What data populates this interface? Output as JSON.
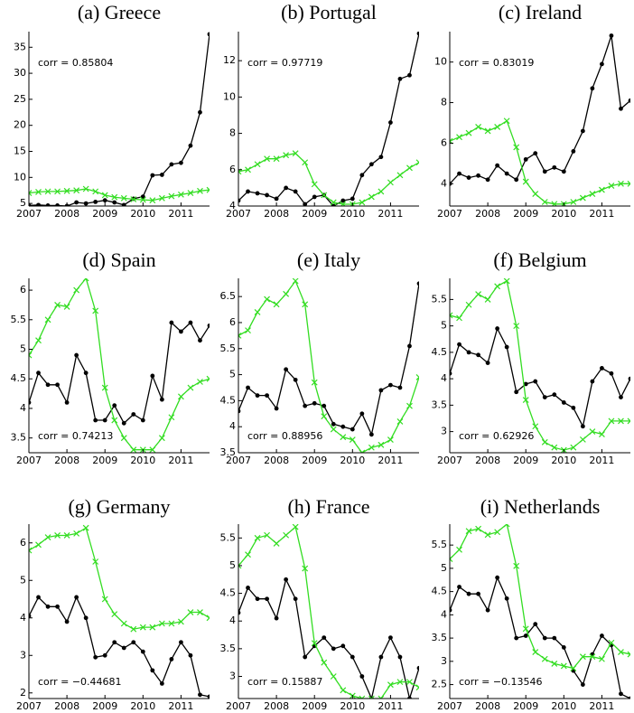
{
  "chart_data": [
    {
      "type": "line",
      "title": "(a) Greece",
      "annotation": "corr = 0.85804",
      "annotation_corner": "top-left",
      "x": [
        2007,
        2007.25,
        2007.5,
        2007.75,
        2008,
        2008.25,
        2008.5,
        2008.75,
        2009,
        2009.25,
        2009.5,
        2009.75,
        2010,
        2010.25,
        2010.5,
        2010.75,
        2011,
        2011.25,
        2011.5,
        2011.75
      ],
      "xlim": [
        2007,
        2011.75
      ],
      "xticks": [
        2007,
        2008,
        2009,
        2010,
        2011
      ],
      "ylim": [
        4.5,
        38
      ],
      "yticks": [
        5,
        10,
        15,
        20,
        25,
        30,
        35
      ],
      "series": [
        {
          "color": "#000000",
          "marker": "o",
          "values": [
            4.6,
            4.7,
            4.6,
            4.6,
            4.5,
            5.2,
            5.0,
            5.3,
            5.6,
            5.2,
            4.7,
            5.9,
            6.3,
            10.4,
            10.5,
            12.5,
            12.8,
            16.1,
            22.5,
            37.5
          ]
        },
        {
          "color": "#33dd22",
          "marker": "x",
          "values": [
            7.0,
            7.2,
            7.3,
            7.3,
            7.4,
            7.5,
            7.8,
            7.3,
            6.6,
            6.2,
            6.0,
            5.8,
            5.7,
            5.6,
            6.0,
            6.4,
            6.7,
            7.0,
            7.4,
            7.6
          ]
        }
      ]
    },
    {
      "type": "line",
      "title": "(b) Portugal",
      "annotation": "corr = 0.97719",
      "annotation_corner": "top-left",
      "x": [
        2007,
        2007.25,
        2007.5,
        2007.75,
        2008,
        2008.25,
        2008.5,
        2008.75,
        2009,
        2009.25,
        2009.5,
        2009.75,
        2010,
        2010.25,
        2010.5,
        2010.75,
        2011,
        2011.25,
        2011.5,
        2011.75
      ],
      "xlim": [
        2007,
        2011.75
      ],
      "xticks": [
        2007,
        2008,
        2009,
        2010,
        2011
      ],
      "ylim": [
        4,
        13.6
      ],
      "yticks": [
        4,
        6,
        8,
        10,
        12
      ],
      "series": [
        {
          "color": "#000000",
          "marker": "o",
          "values": [
            4.3,
            4.8,
            4.7,
            4.6,
            4.4,
            5.0,
            4.8,
            4.1,
            4.5,
            4.6,
            4.0,
            4.3,
            4.4,
            5.7,
            6.3,
            6.7,
            8.6,
            11.0,
            11.2,
            13.5
          ]
        },
        {
          "color": "#33dd22",
          "marker": "x",
          "values": [
            5.9,
            6.0,
            6.3,
            6.6,
            6.6,
            6.8,
            6.9,
            6.4,
            5.2,
            4.6,
            4.2,
            4.1,
            4.1,
            4.2,
            4.5,
            4.8,
            5.3,
            5.7,
            6.1,
            6.4
          ]
        }
      ]
    },
    {
      "type": "line",
      "title": "(c) Ireland",
      "annotation": "corr = 0.83019",
      "annotation_corner": "top-left",
      "x": [
        2007,
        2007.25,
        2007.5,
        2007.75,
        2008,
        2008.25,
        2008.5,
        2008.75,
        2009,
        2009.25,
        2009.5,
        2009.75,
        2010,
        2010.25,
        2010.5,
        2010.75,
        2011,
        2011.25,
        2011.5,
        2011.75
      ],
      "xlim": [
        2007,
        2011.75
      ],
      "xticks": [
        2007,
        2008,
        2009,
        2010,
        2011
      ],
      "ylim": [
        2.9,
        11.5
      ],
      "yticks": [
        4,
        6,
        8,
        10
      ],
      "series": [
        {
          "color": "#000000",
          "marker": "o",
          "values": [
            4.0,
            4.5,
            4.3,
            4.4,
            4.2,
            4.9,
            4.5,
            4.2,
            5.2,
            5.5,
            4.6,
            4.8,
            4.6,
            5.6,
            6.6,
            8.7,
            9.9,
            11.3,
            7.7,
            8.1
          ]
        },
        {
          "color": "#33dd22",
          "marker": "x",
          "values": [
            6.1,
            6.3,
            6.5,
            6.8,
            6.6,
            6.8,
            7.1,
            5.8,
            4.1,
            3.5,
            3.1,
            3.0,
            3.0,
            3.1,
            3.3,
            3.5,
            3.7,
            3.9,
            4.0,
            4.0
          ]
        }
      ]
    },
    {
      "type": "line",
      "title": "(d) Spain",
      "annotation": "corr = 0.74213",
      "annotation_corner": "bottom-left",
      "x": [
        2007,
        2007.25,
        2007.5,
        2007.75,
        2008,
        2008.25,
        2008.5,
        2008.75,
        2009,
        2009.25,
        2009.5,
        2009.75,
        2010,
        2010.25,
        2010.5,
        2010.75,
        2011,
        2011.25,
        2011.5,
        2011.75
      ],
      "xlim": [
        2007,
        2011.75
      ],
      "xticks": [
        2007,
        2008,
        2009,
        2010,
        2011
      ],
      "ylim": [
        3.25,
        6.2
      ],
      "yticks": [
        3.5,
        4,
        4.5,
        5,
        5.5,
        6
      ],
      "series": [
        {
          "color": "#000000",
          "marker": "o",
          "values": [
            4.1,
            4.6,
            4.4,
            4.4,
            4.1,
            4.9,
            4.6,
            3.8,
            3.8,
            4.05,
            3.75,
            3.9,
            3.8,
            4.55,
            4.15,
            5.45,
            5.3,
            5.45,
            5.15,
            5.4
          ]
        },
        {
          "color": "#33dd22",
          "marker": "x",
          "values": [
            4.9,
            5.15,
            5.5,
            5.75,
            5.72,
            6.0,
            6.2,
            5.65,
            4.35,
            3.8,
            3.5,
            3.3,
            3.3,
            3.3,
            3.5,
            3.85,
            4.2,
            4.35,
            4.45,
            4.5
          ]
        }
      ]
    },
    {
      "type": "line",
      "title": "(e) Italy",
      "annotation": "corr = 0.88956",
      "annotation_corner": "bottom-left",
      "x": [
        2007,
        2007.25,
        2007.5,
        2007.75,
        2008,
        2008.25,
        2008.5,
        2008.75,
        2009,
        2009.25,
        2009.5,
        2009.75,
        2010,
        2010.25,
        2010.5,
        2010.75,
        2011,
        2011.25,
        2011.5,
        2011.75
      ],
      "xlim": [
        2007,
        2011.75
      ],
      "xticks": [
        2007,
        2008,
        2009,
        2010,
        2011
      ],
      "ylim": [
        3.5,
        6.85
      ],
      "yticks": [
        3.5,
        4,
        4.5,
        5,
        5.5,
        6,
        6.5
      ],
      "series": [
        {
          "color": "#000000",
          "marker": "o",
          "values": [
            4.3,
            4.75,
            4.6,
            4.6,
            4.35,
            5.1,
            4.9,
            4.4,
            4.45,
            4.4,
            4.05,
            4.0,
            3.95,
            4.25,
            3.85,
            4.7,
            4.8,
            4.75,
            5.55,
            6.75
          ]
        },
        {
          "color": "#33dd22",
          "marker": "x",
          "values": [
            5.75,
            5.85,
            6.2,
            6.45,
            6.35,
            6.55,
            6.8,
            6.35,
            4.85,
            4.2,
            3.95,
            3.8,
            3.75,
            3.5,
            3.6,
            3.65,
            3.75,
            4.1,
            4.4,
            4.95
          ]
        }
      ]
    },
    {
      "type": "line",
      "title": "(f) Belgium",
      "annotation": "corr = 0.62926",
      "annotation_corner": "bottom-left",
      "x": [
        2007,
        2007.25,
        2007.5,
        2007.75,
        2008,
        2008.25,
        2008.5,
        2008.75,
        2009,
        2009.25,
        2009.5,
        2009.75,
        2010,
        2010.25,
        2010.5,
        2010.75,
        2011,
        2011.25,
        2011.5,
        2011.75
      ],
      "xlim": [
        2007,
        2011.75
      ],
      "xticks": [
        2007,
        2008,
        2009,
        2010,
        2011
      ],
      "ylim": [
        2.6,
        5.9
      ],
      "yticks": [
        3,
        3.5,
        4,
        4.5,
        5,
        5.5
      ],
      "series": [
        {
          "color": "#000000",
          "marker": "o",
          "values": [
            4.1,
            4.65,
            4.5,
            4.45,
            4.3,
            4.95,
            4.6,
            3.75,
            3.9,
            3.95,
            3.65,
            3.7,
            3.55,
            3.45,
            3.1,
            3.95,
            4.2,
            4.1,
            3.65,
            4.0
          ]
        },
        {
          "color": "#33dd22",
          "marker": "x",
          "values": [
            5.2,
            5.15,
            5.4,
            5.6,
            5.5,
            5.75,
            5.85,
            5.0,
            3.6,
            3.1,
            2.8,
            2.7,
            2.65,
            2.7,
            2.85,
            3.0,
            2.95,
            3.2,
            3.2,
            3.2
          ]
        }
      ]
    },
    {
      "type": "line",
      "title": "(g) Germany",
      "annotation": "corr = −0.44681",
      "annotation_corner": "bottom-left",
      "x": [
        2007,
        2007.25,
        2007.5,
        2007.75,
        2008,
        2008.25,
        2008.5,
        2008.75,
        2009,
        2009.25,
        2009.5,
        2009.75,
        2010,
        2010.25,
        2010.5,
        2010.75,
        2011,
        2011.25,
        2011.5,
        2011.75
      ],
      "xlim": [
        2007,
        2011.75
      ],
      "xticks": [
        2007,
        2008,
        2009,
        2010,
        2011
      ],
      "ylim": [
        1.85,
        6.5
      ],
      "yticks": [
        2,
        3,
        4,
        5,
        6
      ],
      "series": [
        {
          "color": "#000000",
          "marker": "o",
          "values": [
            4.05,
            4.55,
            4.3,
            4.3,
            3.9,
            4.55,
            4.0,
            2.95,
            3.0,
            3.35,
            3.2,
            3.35,
            3.1,
            2.6,
            2.25,
            2.9,
            3.35,
            3.0,
            1.95,
            1.9
          ]
        },
        {
          "color": "#33dd22",
          "marker": "x",
          "values": [
            5.8,
            5.95,
            6.15,
            6.2,
            6.2,
            6.25,
            6.4,
            5.5,
            4.5,
            4.1,
            3.85,
            3.7,
            3.75,
            3.75,
            3.85,
            3.85,
            3.9,
            4.15,
            4.15,
            4.0
          ]
        }
      ]
    },
    {
      "type": "line",
      "title": "(h) France",
      "annotation": "corr = 0.15887",
      "annotation_corner": "bottom-left",
      "x": [
        2007,
        2007.25,
        2007.5,
        2007.75,
        2008,
        2008.25,
        2008.5,
        2008.75,
        2009,
        2009.25,
        2009.5,
        2009.75,
        2010,
        2010.25,
        2010.5,
        2010.75,
        2011,
        2011.25,
        2011.5,
        2011.75
      ],
      "xlim": [
        2007,
        2011.75
      ],
      "xticks": [
        2007,
        2008,
        2009,
        2010,
        2011
      ],
      "ylim": [
        2.6,
        5.75
      ],
      "yticks": [
        3,
        3.5,
        4,
        4.5,
        5,
        5.5
      ],
      "series": [
        {
          "color": "#000000",
          "marker": "o",
          "values": [
            4.15,
            4.6,
            4.4,
            4.4,
            4.05,
            4.75,
            4.4,
            3.35,
            3.55,
            3.7,
            3.5,
            3.55,
            3.35,
            3.0,
            2.6,
            3.35,
            3.7,
            3.35,
            2.6,
            3.15
          ]
        },
        {
          "color": "#33dd22",
          "marker": "x",
          "values": [
            5.0,
            5.2,
            5.5,
            5.55,
            5.4,
            5.55,
            5.7,
            4.95,
            3.6,
            3.25,
            3.0,
            2.75,
            2.65,
            2.6,
            2.6,
            2.6,
            2.85,
            2.9,
            2.9,
            2.8
          ]
        }
      ]
    },
    {
      "type": "line",
      "title": "(i) Netherlands",
      "annotation": "corr = −0.13546",
      "annotation_corner": "bottom-left",
      "x": [
        2007,
        2007.25,
        2007.5,
        2007.75,
        2008,
        2008.25,
        2008.5,
        2008.75,
        2009,
        2009.25,
        2009.5,
        2009.75,
        2010,
        2010.25,
        2010.5,
        2010.75,
        2011,
        2011.25,
        2011.5,
        2011.75
      ],
      "xlim": [
        2007,
        2011.75
      ],
      "xticks": [
        2007,
        2008,
        2009,
        2010,
        2011
      ],
      "ylim": [
        2.2,
        5.95
      ],
      "yticks": [
        2.5,
        3,
        3.5,
        4,
        4.5,
        5,
        5.5
      ],
      "series": [
        {
          "color": "#000000",
          "marker": "o",
          "values": [
            4.1,
            4.6,
            4.45,
            4.45,
            4.1,
            4.8,
            4.35,
            3.5,
            3.55,
            3.8,
            3.5,
            3.5,
            3.3,
            2.8,
            2.5,
            3.15,
            3.55,
            3.35,
            2.3,
            2.2
          ]
        },
        {
          "color": "#33dd22",
          "marker": "x",
          "values": [
            5.2,
            5.4,
            5.8,
            5.85,
            5.72,
            5.78,
            5.95,
            5.05,
            3.7,
            3.2,
            3.05,
            2.95,
            2.9,
            2.85,
            3.1,
            3.1,
            3.05,
            3.4,
            3.2,
            3.15
          ]
        }
      ]
    }
  ]
}
